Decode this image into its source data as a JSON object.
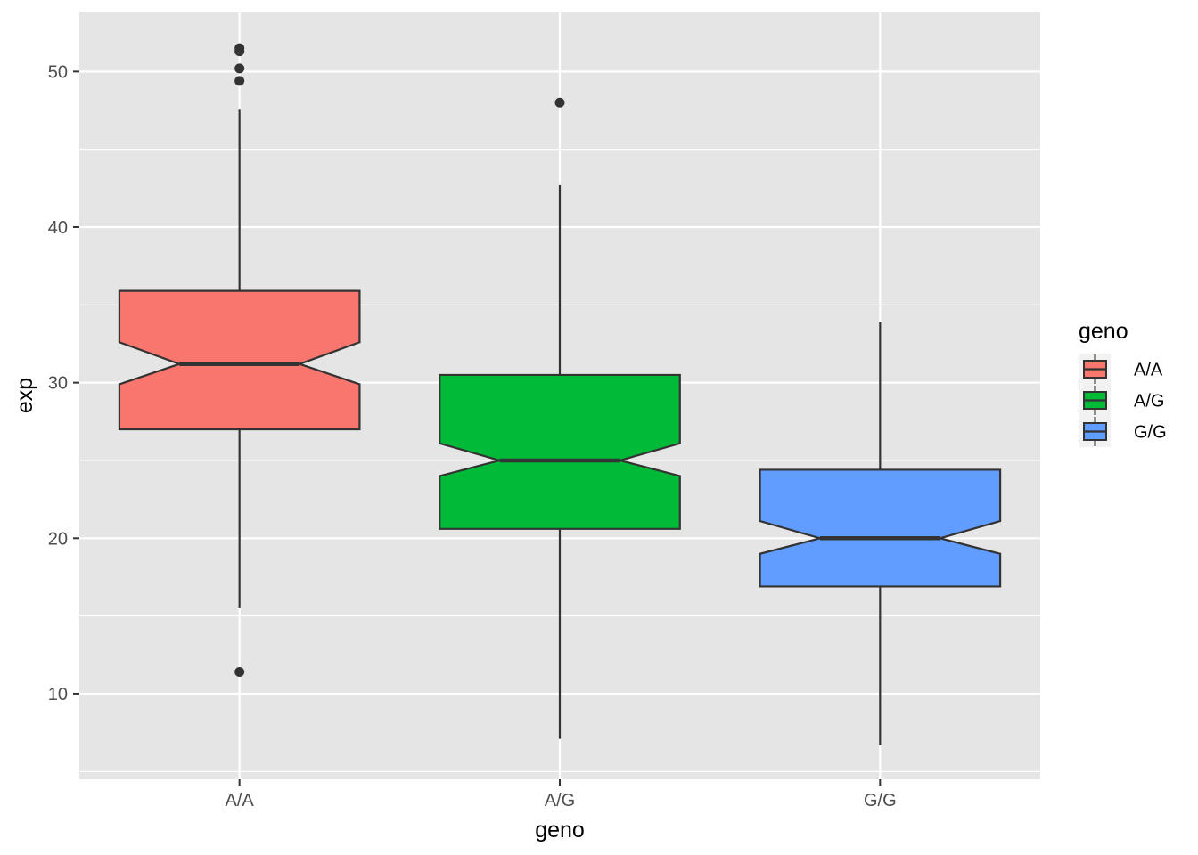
{
  "chart_data": {
    "type": "boxplot",
    "notched": true,
    "xlabel": "geno",
    "ylabel": "exp",
    "categories": [
      "A/A",
      "A/G",
      "G/G"
    ],
    "ylim": [
      4.5,
      53.8
    ],
    "yticks": [
      10,
      20,
      30,
      40,
      50
    ],
    "grid": true,
    "legend": {
      "title": "geno",
      "position": "right",
      "entries": [
        "A/A",
        "A/G",
        "G/G"
      ]
    },
    "series": [
      {
        "category": "A/A",
        "color": "#F8766D",
        "whisker_low": 15.5,
        "q1": 27.0,
        "median": 31.2,
        "q3": 35.9,
        "whisker_high": 47.6,
        "notch_low": 29.9,
        "notch_high": 32.6,
        "outliers": [
          51.5,
          51.3,
          50.2,
          49.4,
          11.4
        ]
      },
      {
        "category": "A/G",
        "color": "#00BA38",
        "whisker_low": 7.1,
        "q1": 20.6,
        "median": 25.0,
        "q3": 30.5,
        "whisker_high": 42.7,
        "notch_low": 24.0,
        "notch_high": 26.1,
        "outliers": [
          48.0
        ]
      },
      {
        "category": "G/G",
        "color": "#619CFF",
        "whisker_low": 6.7,
        "q1": 16.9,
        "median": 20.0,
        "q3": 24.4,
        "whisker_high": 33.9,
        "notch_low": 19.0,
        "notch_high": 21.1,
        "outliers": []
      }
    ],
    "colors": {
      "panel": "#E5E5E5",
      "grid": "#FFFFFF",
      "outline": "#333333"
    }
  }
}
